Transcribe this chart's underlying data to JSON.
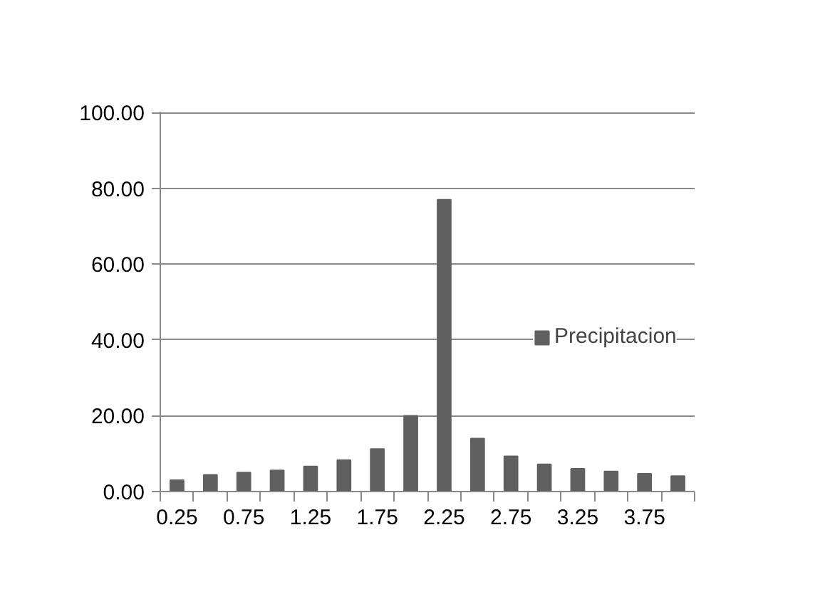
{
  "chart_data": {
    "type": "bar",
    "categories": [
      "0.25",
      null,
      "0.75",
      null,
      "1.25",
      null,
      "1.75",
      null,
      "2.25",
      null,
      "2.75",
      null,
      "3.25",
      null,
      "3.75",
      null
    ],
    "series": [
      {
        "name": "Precipitacion",
        "color": "#606060",
        "values": [
          3.0,
          4.4,
          5.0,
          5.6,
          6.6,
          8.3,
          11.2,
          20.0,
          77.0,
          14.0,
          9.3,
          7.2,
          6.0,
          5.3,
          4.7,
          4.1
        ]
      }
    ],
    "ylim": [
      0,
      100
    ],
    "yticks": [
      {
        "value": 0,
        "label": "0.00"
      },
      {
        "value": 20,
        "label": "20.00"
      },
      {
        "value": 40,
        "label": "40.00"
      },
      {
        "value": 60,
        "label": "60.00"
      },
      {
        "value": 80,
        "label": "80.00"
      },
      {
        "value": 100,
        "label": "100.00"
      }
    ],
    "grid": "y",
    "legend": "right"
  }
}
